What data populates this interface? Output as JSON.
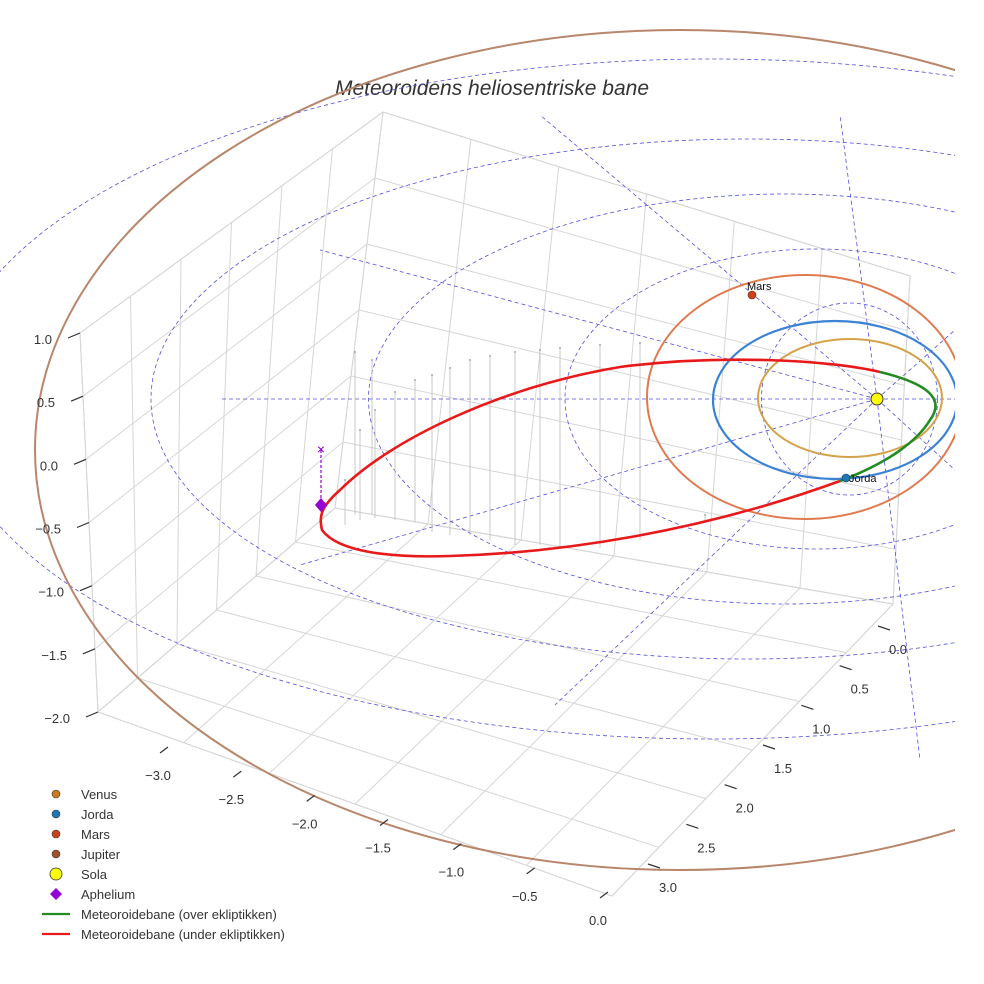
{
  "chart_data": {
    "type": "3d-orbit",
    "title": "Meteoroidens heliosentriske bane",
    "axes": {
      "x": {
        "label": "",
        "ticks": [
          -3.0,
          -2.5,
          -2.0,
          -1.5,
          -1.0,
          -0.5,
          0.0
        ],
        "tick_labels": [
          "−3.0",
          "−2.5",
          "−2.0",
          "−1.5",
          "−1.0",
          "−0.5",
          "0.0"
        ]
      },
      "y": {
        "label": "",
        "ticks": [
          0.0,
          0.5,
          1.0,
          1.5,
          2.0,
          2.5,
          3.0
        ],
        "tick_labels": [
          "0.0",
          "0.5",
          "1.0",
          "1.5",
          "2.0",
          "2.5",
          "3.0"
        ]
      },
      "z": {
        "label": "",
        "ticks": [
          -2.0,
          -1.5,
          -1.0,
          -0.5,
          0.0,
          0.5,
          1.0
        ],
        "tick_labels": [
          "−2.0",
          "−1.5",
          "−1.0",
          "−0.5",
          "0.0",
          "0.5",
          "1.0"
        ]
      }
    },
    "bodies": [
      {
        "name": "Venus",
        "color": "#cc7a1c",
        "orbit_color": "#d4a24a",
        "orbit_radius_au": 0.72
      },
      {
        "name": "Jorda",
        "color": "#1f77b4",
        "orbit_color": "#3b82d6",
        "orbit_radius_au": 1.0,
        "annotation": "Jorda"
      },
      {
        "name": "Mars",
        "color": "#c8431a",
        "orbit_color": "#e07a50",
        "orbit_radius_au": 1.52,
        "annotation": "Mars"
      },
      {
        "name": "Jupiter",
        "color": "#a0522d",
        "orbit_color": "#b8866a",
        "orbit_radius_au": 5.2
      },
      {
        "name": "Sola",
        "color": "#ffff00",
        "position": [
          0,
          0,
          0
        ]
      }
    ],
    "aphelium": {
      "name": "Aphelium",
      "color": "#9400d3"
    },
    "series": [
      {
        "name": "Meteoroidebane (over ekliptikken)",
        "color": "#228b22"
      },
      {
        "name": "Meteoroidebane (under ekliptikken)",
        "color": "#e8191a"
      }
    ],
    "legend": {
      "position": "bottom-left",
      "items": [
        {
          "label": "Venus",
          "marker": "circle",
          "color": "#cc7a1c"
        },
        {
          "label": "Jorda",
          "marker": "circle",
          "color": "#1f77b4"
        },
        {
          "label": "Mars",
          "marker": "circle",
          "color": "#c8431a"
        },
        {
          "label": "Jupiter",
          "marker": "circle",
          "color": "#a0522d"
        },
        {
          "label": "Sola",
          "marker": "circle-large",
          "color": "#ffff00"
        },
        {
          "label": "Aphelium",
          "marker": "diamond",
          "color": "#9400d3"
        },
        {
          "label": "Meteoroidebane (over ekliptikken)",
          "marker": "line",
          "color": "#228b22"
        },
        {
          "label": "Meteoroidebane (under ekliptikken)",
          "marker": "line",
          "color": "#e8191a"
        }
      ]
    },
    "grid": true,
    "ecliptic_grid_color": "#5050e0"
  }
}
